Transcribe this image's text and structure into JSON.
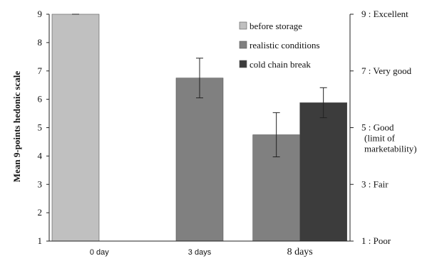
{
  "chart_data": {
    "type": "bar",
    "ylabel": "Mean 9-points hedonic scale",
    "ylim": [
      1,
      9
    ],
    "yticks": [
      1,
      2,
      3,
      4,
      5,
      6,
      7,
      8,
      9
    ],
    "categories": [
      "0 day",
      "3 days",
      "8 days"
    ],
    "series": [
      {
        "name": "before storage",
        "color": "#c0c0c0",
        "values": [
          9.0,
          null,
          null
        ],
        "errors": [
          0.0,
          null,
          null
        ]
      },
      {
        "name": "realistic conditions",
        "color": "#808080",
        "values": [
          null,
          6.75,
          4.75
        ],
        "errors": [
          null,
          0.7,
          0.78
        ]
      },
      {
        "name": "cold chain break",
        "color": "#3c3c3c",
        "values": [
          null,
          null,
          5.88
        ],
        "errors": [
          null,
          null,
          0.53
        ]
      }
    ],
    "legend_position": "top-right",
    "grid": false,
    "secondary_axis_labels": [
      {
        "value": 9,
        "lines": [
          "9 : Excellent"
        ]
      },
      {
        "value": 7,
        "lines": [
          "7 : Very good"
        ]
      },
      {
        "value": 5,
        "lines": [
          "5 : Good",
          "(limit of",
          "marketability)"
        ]
      },
      {
        "value": 3,
        "lines": [
          "3 : Fair"
        ]
      },
      {
        "value": 1,
        "lines": [
          "1 : Poor"
        ]
      }
    ]
  }
}
